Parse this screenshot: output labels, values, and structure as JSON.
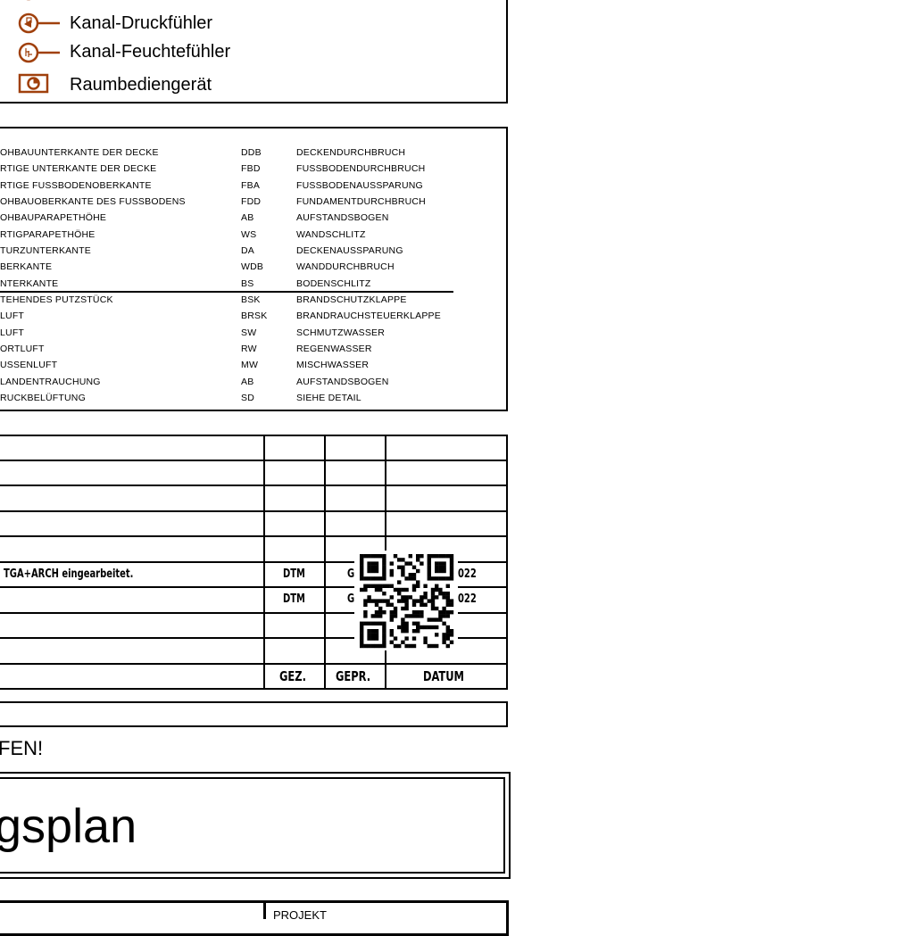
{
  "legend": {
    "accent_color": "#a0400c",
    "items": [
      {
        "icon": "duct-pressure-sensor-icon",
        "label": "Kanal-Druckfühler"
      },
      {
        "icon": "duct-humidity-sensor-icon",
        "label": "Kanal-Feuchtefühler"
      },
      {
        "icon": "room-control-unit-icon",
        "label": "Raumbediengerät"
      }
    ]
  },
  "abbreviations": {
    "left": [
      "OHBAUUNTERKANTE DER DECKE",
      "RTIGE UNTERKANTE DER DECKE",
      "RTIGE FUSSBODENOBERKANTE",
      "OHBAUOBERKANTE DES FUSSBODENS",
      "OHBAUPARAPETHÖHE",
      "RTIGPARAPETHÖHE",
      "TURZUNTERKANTE",
      "BERKANTE",
      "NTERKANTE",
      "TEHENDES PUTZSTÜCK",
      "LUFT",
      "LUFT",
      "ORTLUFT",
      "USSENLUFT",
      "LANDENTRAUCHUNG",
      "RUCKBELÜFTUNG"
    ],
    "codes": [
      "DDB",
      "FBD",
      "FBA",
      "FDD",
      "AB",
      "WS",
      "DA",
      "WDB",
      "BS",
      "BSK",
      "BRSK",
      "SW",
      "RW",
      "MW",
      "AB",
      "SD"
    ],
    "meanings": [
      "DECKENDURCHBRUCH",
      "FUSSBODENDURCHBRUCH",
      "FUSSBODENAUSSPARUNG",
      "FUNDAMENTDURCHBRUCH",
      "AUFSTANDSBOGEN",
      "WANDSCHLITZ",
      "DECKENAUSSPARUNG",
      "WANDDURCHBRUCH",
      "BODENSCHLITZ",
      "BRANDSCHUTZKLAPPE",
      "BRANDRAUCHSTEUERKLAPPE",
      "SCHMUTZWASSER",
      "REGENWASSER",
      "MISCHWASSER",
      "AUFSTANDSBOGEN",
      "SIEHE DETAIL"
    ]
  },
  "revisions": {
    "rows": [
      {
        "description": "TGA+ARCH eingearbeitet.",
        "drawn": "DTM",
        "checked": "G",
        "date": "022"
      },
      {
        "description": "",
        "drawn": "DTM",
        "checked": "G",
        "date": "022"
      }
    ],
    "headers": {
      "drawn": "GEZ.",
      "checked": "GEPR.",
      "date": "DATUM"
    }
  },
  "notice": "FEN!",
  "title": "gsplan",
  "project_label": "PROJEKT"
}
